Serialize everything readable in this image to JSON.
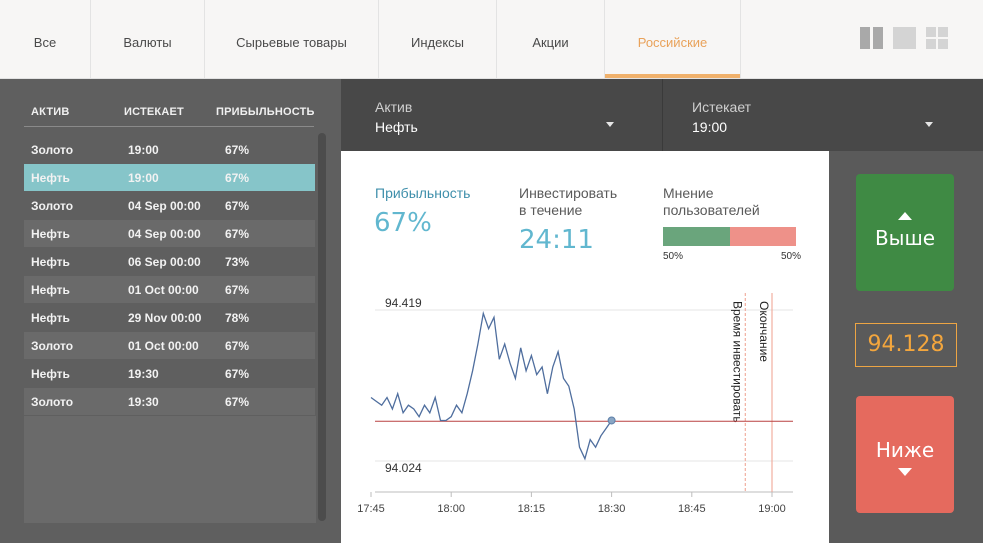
{
  "tabs": [
    {
      "label": "Все"
    },
    {
      "label": "Валюты"
    },
    {
      "label": "Сырьевые товары"
    },
    {
      "label": "Индексы"
    },
    {
      "label": "Акции"
    },
    {
      "label": "Российские",
      "active": true
    }
  ],
  "view_icons": [
    "two-column-view-icon",
    "single-view-icon",
    "grid-view-icon"
  ],
  "asset_table": {
    "headers": {
      "asset": "АКТИВ",
      "expires": "ИСТЕКАЕТ",
      "profit": "ПРИБЫЛЬНОСТЬ"
    },
    "rows": [
      {
        "asset": "Золото",
        "expires": "19:00",
        "profit": "67%"
      },
      {
        "asset": "Нефть",
        "expires": "19:00",
        "profit": "67%",
        "selected": true
      },
      {
        "asset": "Золото",
        "expires": "04 Sep 00:00",
        "profit": "67%"
      },
      {
        "asset": "Нефть",
        "expires": "04 Sep 00:00",
        "profit": "67%"
      },
      {
        "asset": "Нефть",
        "expires": "06 Sep 00:00",
        "profit": "73%"
      },
      {
        "asset": "Нефть",
        "expires": "01 Oct 00:00",
        "profit": "67%"
      },
      {
        "asset": "Нефть",
        "expires": "29 Nov 00:00",
        "profit": "78%"
      },
      {
        "asset": "Золото",
        "expires": "01 Oct 00:00",
        "profit": "67%"
      },
      {
        "asset": "Нефть",
        "expires": "19:30",
        "profit": "67%"
      },
      {
        "asset": "Золото",
        "expires": "19:30",
        "profit": "67%"
      }
    ]
  },
  "dropdowns": {
    "asset": {
      "label": "Актив",
      "value": "Нефть"
    },
    "expires": {
      "label": "Истекает",
      "value": "19:00"
    }
  },
  "stats": {
    "profit": {
      "label": "Прибыльность",
      "value": "67%"
    },
    "invest": {
      "label_line1": "Инвестировать",
      "label_line2": "в течение",
      "value": "24:11"
    },
    "opinion": {
      "label_line1": "Мнение",
      "label_line2": "пользователей",
      "left_pct": "50%",
      "right_pct": "50%",
      "left_fraction": 0.5,
      "left_color": "#6aa57c",
      "right_color": "#ee9189"
    }
  },
  "chart_data": {
    "type": "line",
    "x_ticks": [
      "17:45",
      "18:00",
      "18:15",
      "18:30",
      "18:45",
      "19:00"
    ],
    "y_labels": {
      "high": "94.419",
      "low": "94.024"
    },
    "reference_level": 94.128,
    "vlines": [
      {
        "label": "Время инвестировать",
        "time": "18:55",
        "style": "dashed"
      },
      {
        "label": "Окончание",
        "time": "19:00",
        "style": "solid"
      }
    ],
    "series": [
      {
        "x": [
          "17:45",
          "17:46",
          "17:47",
          "17:48",
          "17:49",
          "17:50",
          "17:51",
          "17:52",
          "17:53",
          "17:54",
          "17:55",
          "17:56",
          "17:57",
          "17:58",
          "17:59",
          "18:00",
          "18:01",
          "18:02",
          "18:03",
          "18:04",
          "18:05",
          "18:06",
          "18:07",
          "18:08",
          "18:09",
          "18:10",
          "18:11",
          "18:12",
          "18:13",
          "18:14",
          "18:15",
          "18:16",
          "18:17",
          "18:18",
          "18:19",
          "18:20",
          "18:21",
          "18:22",
          "18:23",
          "18:24",
          "18:25",
          "18:26",
          "18:27",
          "18:28",
          "18:29",
          "18:30"
        ],
        "y": [
          94.19,
          94.18,
          94.17,
          94.19,
          94.16,
          94.2,
          94.15,
          94.17,
          94.16,
          94.14,
          94.17,
          94.15,
          94.19,
          94.13,
          94.13,
          94.14,
          94.17,
          94.15,
          94.2,
          94.26,
          94.33,
          94.41,
          94.37,
          94.4,
          94.29,
          94.33,
          94.28,
          94.24,
          94.32,
          94.26,
          94.3,
          94.25,
          94.27,
          94.2,
          94.27,
          94.31,
          94.24,
          94.22,
          94.16,
          94.06,
          94.03,
          94.08,
          94.06,
          94.09,
          94.11,
          94.13
        ]
      }
    ],
    "colors": {
      "line": "#4f6e9e",
      "reference": "#b94040",
      "vline": "#ef9f8e"
    }
  },
  "actions": {
    "up": {
      "label": "Выше",
      "color": "#3f8a44"
    },
    "price": "94.128",
    "down": {
      "label": "Ниже",
      "color": "#e56a5e"
    }
  }
}
